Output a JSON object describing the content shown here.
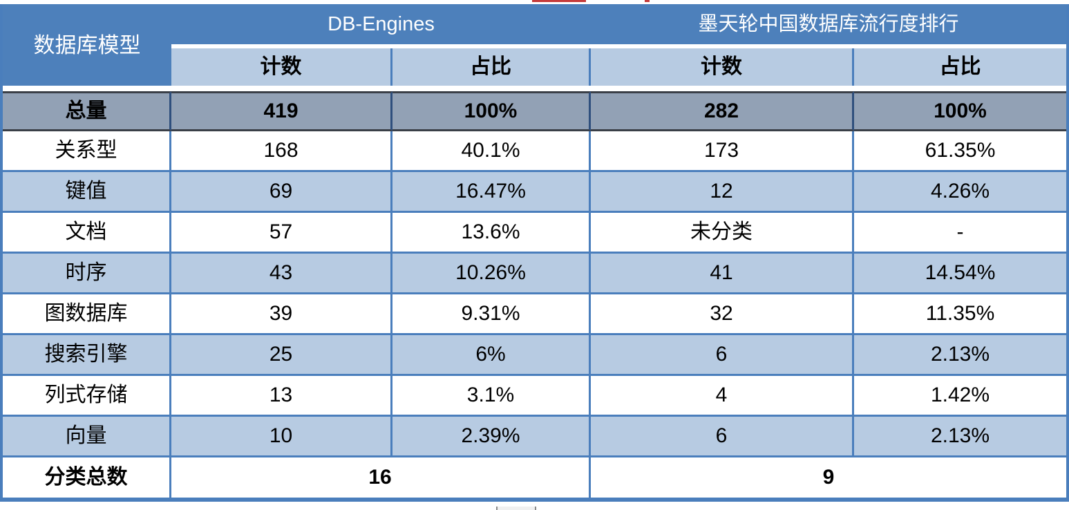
{
  "table": {
    "corner_header": "数据库模型",
    "group_headers": {
      "db_engines": "DB-Engines",
      "modb": "墨天轮中国数据库流行度排行"
    },
    "sub_headers": [
      "计数",
      "占比",
      "计数",
      "占比"
    ],
    "total_row": {
      "label": "总量",
      "cells": [
        "419",
        "100%",
        "282",
        "100%"
      ]
    },
    "rows": [
      {
        "label": "关系型",
        "cells": [
          "168",
          "40.1%",
          "173",
          "61.35%"
        ]
      },
      {
        "label": "键值",
        "cells": [
          "69",
          "16.47%",
          "12",
          "4.26%"
        ]
      },
      {
        "label": "文档",
        "cells": [
          "57",
          "13.6%",
          "未分类",
          "-"
        ]
      },
      {
        "label": "时序",
        "cells": [
          "43",
          "10.26%",
          "41",
          "14.54%"
        ]
      },
      {
        "label": "图数据库",
        "cells": [
          "39",
          "9.31%",
          "32",
          "11.35%"
        ]
      },
      {
        "label": "搜索引擎",
        "cells": [
          "25",
          "6%",
          "6",
          "2.13%"
        ]
      },
      {
        "label": "列式存储",
        "cells": [
          "13",
          "3.1%",
          "4",
          "1.42%"
        ]
      },
      {
        "label": "向量",
        "cells": [
          "10",
          "2.39%",
          "6",
          "2.13%"
        ]
      }
    ],
    "summary_row": {
      "label": "分类总数",
      "db_engines_total": "16",
      "modb_total": "9"
    }
  },
  "colors": {
    "header_blue": "#4d80bb",
    "light_blue": "#b7cbe2",
    "total_gray": "#92a1b5",
    "border_blue": "#4a7ebc",
    "total_border_dark": "#3a3f47",
    "artifact_red": "#c53b3b"
  },
  "chart_data": {
    "type": "table",
    "title": "数据库模型分类统计：DB-Engines 与 墨天轮中国数据库流行度排行对比",
    "columns": [
      "数据库模型",
      "DB-Engines 计数",
      "DB-Engines 占比",
      "墨天轮 计数",
      "墨天轮 占比"
    ],
    "rows": [
      [
        "总量",
        "419",
        "100%",
        "282",
        "100%"
      ],
      [
        "关系型",
        "168",
        "40.1%",
        "173",
        "61.35%"
      ],
      [
        "键值",
        "69",
        "16.47%",
        "12",
        "4.26%"
      ],
      [
        "文档",
        "57",
        "13.6%",
        "未分类",
        "-"
      ],
      [
        "时序",
        "43",
        "10.26%",
        "41",
        "14.54%"
      ],
      [
        "图数据库",
        "39",
        "9.31%",
        "32",
        "11.35%"
      ],
      [
        "搜索引擎",
        "25",
        "6%",
        "6",
        "2.13%"
      ],
      [
        "列式存储",
        "13",
        "3.1%",
        "4",
        "1.42%"
      ],
      [
        "向量",
        "10",
        "2.39%",
        "6",
        "2.13%"
      ],
      [
        "分类总数",
        "16",
        "",
        "9",
        ""
      ]
    ]
  }
}
